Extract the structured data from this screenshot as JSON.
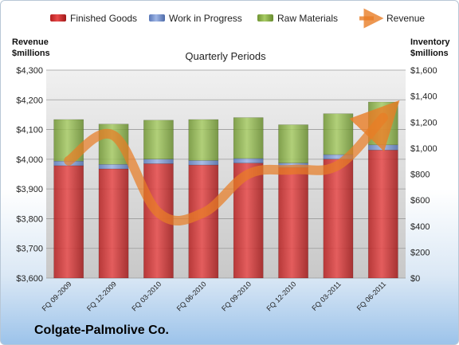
{
  "company": "Colgate-Palmolive Co.",
  "chart_data": {
    "type": "bar",
    "stacked": true,
    "subtitle": "Quarterly Periods",
    "categories": [
      "FQ 09-2009",
      "FQ 12-2009",
      "FQ 03-2010",
      "FQ 06-2010",
      "FQ 09-2010",
      "FQ 12-2010",
      "FQ 03-2011",
      "FQ 06-2011"
    ],
    "left_axis": {
      "title_line1": "Revenue",
      "title_line2": "$millions",
      "ylim": [
        3600,
        4300
      ],
      "ticks": [
        "$3,600",
        "$3,700",
        "$3,800",
        "$3,900",
        "$4,000",
        "$4,100",
        "$4,200",
        "$4,300"
      ]
    },
    "right_axis": {
      "title_line1": "Inventory",
      "title_line2": "$millions",
      "ylim": [
        0,
        1600
      ],
      "ticks": [
        "$0",
        "$200",
        "$400",
        "$600",
        "$800",
        "$1,000",
        "$1,200",
        "$1,400",
        "$1,600"
      ]
    },
    "series": [
      {
        "name": "Finished Goods",
        "axis": "right",
        "color": "#d42f2f",
        "values": [
          865,
          840,
          880,
          870,
          885,
          850,
          915,
          985
        ]
      },
      {
        "name": "Work in Progress",
        "axis": "right",
        "color": "#6f8fcf",
        "values": [
          35,
          35,
          35,
          35,
          35,
          35,
          35,
          40
        ]
      },
      {
        "name": "Raw Materials",
        "axis": "right",
        "color": "#8db34a",
        "values": [
          320,
          310,
          300,
          315,
          315,
          295,
          315,
          330
        ]
      },
      {
        "name": "Revenue",
        "axis": "left",
        "color": "#e87d26",
        "type": "line",
        "values": [
          3995,
          4080,
          3820,
          3820,
          3950,
          3965,
          3980,
          4140
        ]
      }
    ],
    "legend_position": "top",
    "grid": true
  }
}
